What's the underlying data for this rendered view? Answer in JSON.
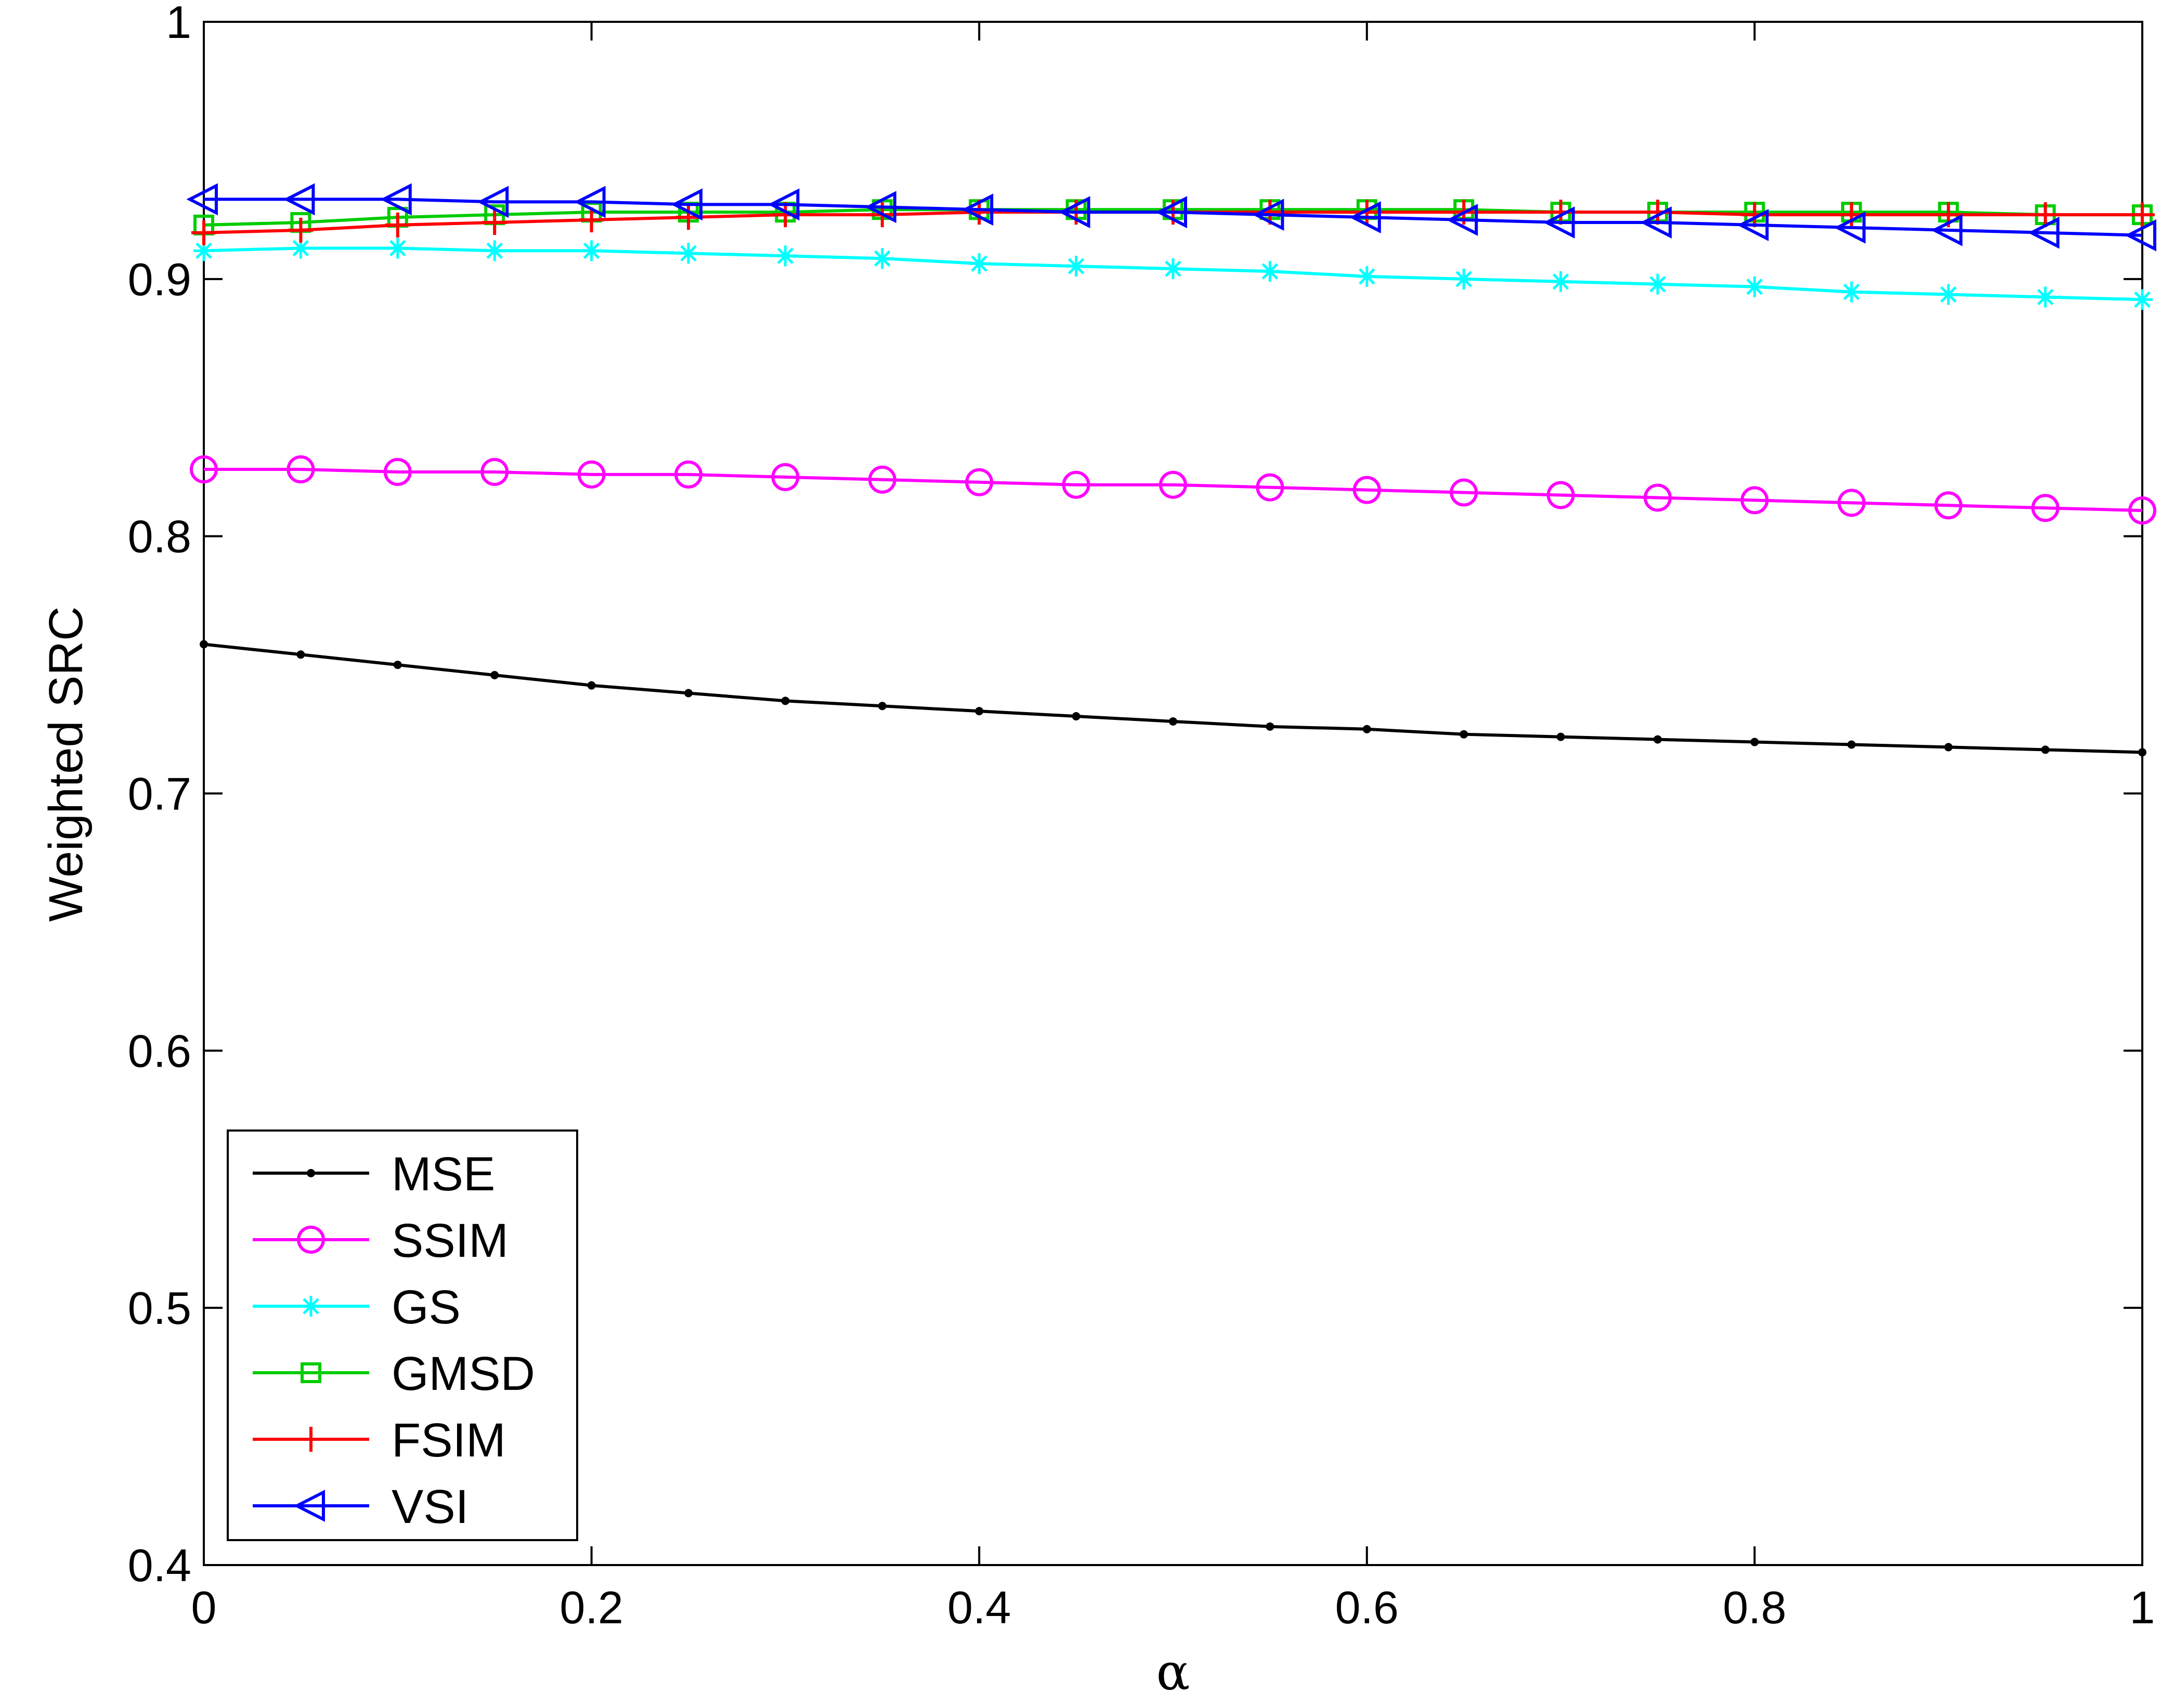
{
  "chart_data": {
    "type": "line",
    "title": "",
    "xlabel": "α",
    "ylabel": "Weighted SRC",
    "xlim": [
      0,
      1
    ],
    "ylim": [
      0.4,
      1
    ],
    "grid": false,
    "legend_position": "bottom-left",
    "x": [
      0,
      0.05,
      0.1,
      0.15,
      0.2,
      0.25,
      0.3,
      0.35,
      0.4,
      0.45,
      0.5,
      0.55,
      0.6,
      0.65,
      0.7,
      0.75,
      0.8,
      0.85,
      0.9,
      0.95,
      1
    ],
    "xticks": [
      "0",
      "0.2",
      "0.4",
      "0.6",
      "0.8",
      "1"
    ],
    "yticks": [
      "0.4",
      "0.5",
      "0.6",
      "0.7",
      "0.8",
      "0.9",
      "1"
    ],
    "series": [
      {
        "name": "MSE",
        "color": "#000000",
        "marker": "dot",
        "values": [
          0.758,
          0.754,
          0.75,
          0.746,
          0.742,
          0.739,
          0.736,
          0.734,
          0.732,
          0.73,
          0.728,
          0.726,
          0.725,
          0.723,
          0.722,
          0.721,
          0.72,
          0.719,
          0.718,
          0.717,
          0.716
        ]
      },
      {
        "name": "SSIM",
        "color": "#ff00ff",
        "marker": "circle",
        "values": [
          0.826,
          0.826,
          0.825,
          0.825,
          0.824,
          0.824,
          0.823,
          0.822,
          0.821,
          0.82,
          0.82,
          0.819,
          0.818,
          0.817,
          0.816,
          0.815,
          0.814,
          0.813,
          0.812,
          0.811,
          0.81
        ]
      },
      {
        "name": "GS",
        "color": "#00ffff",
        "marker": "asterisk",
        "values": [
          0.911,
          0.912,
          0.912,
          0.911,
          0.911,
          0.91,
          0.909,
          0.908,
          0.906,
          0.905,
          0.904,
          0.903,
          0.901,
          0.9,
          0.899,
          0.898,
          0.897,
          0.895,
          0.894,
          0.893,
          0.892
        ]
      },
      {
        "name": "GMSD",
        "color": "#00cc00",
        "marker": "square",
        "values": [
          0.921,
          0.922,
          0.924,
          0.925,
          0.926,
          0.926,
          0.926,
          0.927,
          0.927,
          0.927,
          0.927,
          0.927,
          0.927,
          0.927,
          0.926,
          0.926,
          0.926,
          0.926,
          0.926,
          0.925,
          0.925
        ]
      },
      {
        "name": "FSIM",
        "color": "#ff0000",
        "marker": "plus",
        "values": [
          0.918,
          0.919,
          0.921,
          0.922,
          0.923,
          0.924,
          0.925,
          0.925,
          0.926,
          0.926,
          0.926,
          0.926,
          0.926,
          0.926,
          0.926,
          0.926,
          0.925,
          0.925,
          0.925,
          0.925,
          0.925
        ]
      },
      {
        "name": "VSI",
        "color": "#0000ff",
        "marker": "triangle-left",
        "values": [
          0.931,
          0.931,
          0.931,
          0.93,
          0.93,
          0.929,
          0.929,
          0.928,
          0.927,
          0.926,
          0.926,
          0.925,
          0.924,
          0.923,
          0.922,
          0.922,
          0.921,
          0.92,
          0.919,
          0.918,
          0.917
        ]
      }
    ]
  }
}
